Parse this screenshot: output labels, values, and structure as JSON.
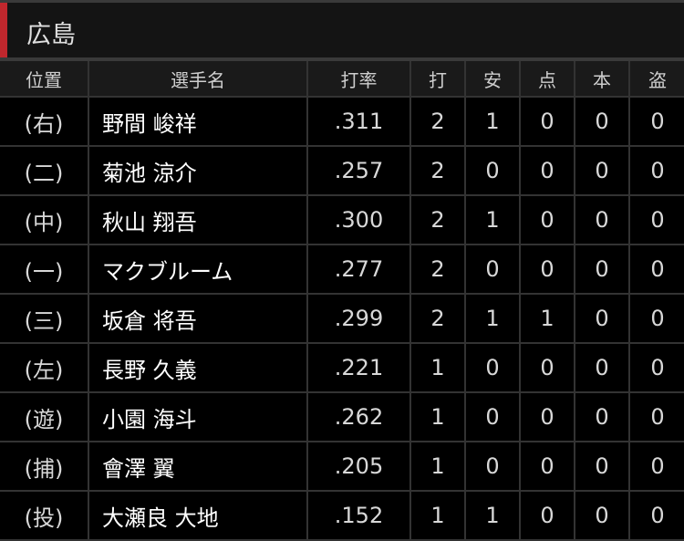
{
  "team": {
    "name": "広島",
    "accent": "#c0272d"
  },
  "columns": [
    "位置",
    "選手名",
    "打率",
    "打",
    "安",
    "点",
    "本",
    "盗"
  ],
  "rows": [
    {
      "pos": "(右)",
      "name": "野間 峻祥",
      "avg": ".311",
      "ab": "2",
      "h": "1",
      "rbi": "0",
      "hr": "0",
      "sb": "0"
    },
    {
      "pos": "(二)",
      "name": "菊池 涼介",
      "avg": ".257",
      "ab": "2",
      "h": "0",
      "rbi": "0",
      "hr": "0",
      "sb": "0"
    },
    {
      "pos": "(中)",
      "name": "秋山 翔吾",
      "avg": ".300",
      "ab": "2",
      "h": "1",
      "rbi": "0",
      "hr": "0",
      "sb": "0"
    },
    {
      "pos": "(一)",
      "name": "マクブルーム",
      "avg": ".277",
      "ab": "2",
      "h": "0",
      "rbi": "0",
      "hr": "0",
      "sb": "0"
    },
    {
      "pos": "(三)",
      "name": "坂倉 将吾",
      "avg": ".299",
      "ab": "2",
      "h": "1",
      "rbi": "1",
      "hr": "0",
      "sb": "0"
    },
    {
      "pos": "(左)",
      "name": "長野 久義",
      "avg": ".221",
      "ab": "1",
      "h": "0",
      "rbi": "0",
      "hr": "0",
      "sb": "0"
    },
    {
      "pos": "(遊)",
      "name": "小園 海斗",
      "avg": ".262",
      "ab": "1",
      "h": "0",
      "rbi": "0",
      "hr": "0",
      "sb": "0"
    },
    {
      "pos": "(捕)",
      "name": "會澤 翼",
      "avg": ".205",
      "ab": "1",
      "h": "0",
      "rbi": "0",
      "hr": "0",
      "sb": "0"
    },
    {
      "pos": "(投)",
      "name": "大瀬良 大地",
      "avg": ".152",
      "ab": "1",
      "h": "1",
      "rbi": "0",
      "hr": "0",
      "sb": "0"
    }
  ]
}
